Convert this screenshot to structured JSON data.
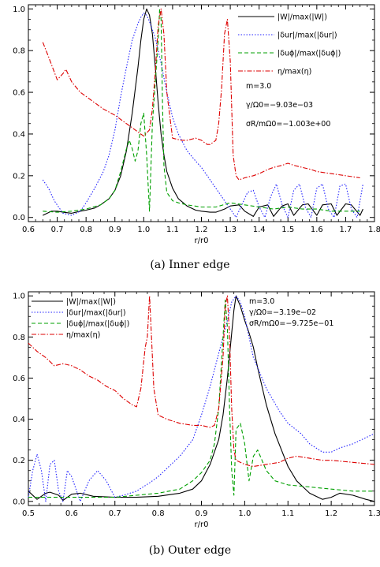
{
  "chart_data": [
    {
      "type": "line",
      "caption": "(a) Inner edge",
      "xlabel": "r/r0",
      "ylabel": "",
      "xlim": [
        0.6,
        1.8
      ],
      "ylim": [
        -0.02,
        1.02
      ],
      "xticks": [
        "0.6",
        "0.7",
        "0.8",
        "0.9",
        "1.0",
        "1.1",
        "1.2",
        "1.3",
        "1.4",
        "1.5",
        "1.6",
        "1.7",
        "1.8"
      ],
      "yticks": [
        "0.0",
        "0.2",
        "0.4",
        "0.6",
        "0.8",
        "1.0"
      ],
      "legend_position": "top-right",
      "annotations": [
        "m=3.0",
        "γ/Ω0=−9.03e−03",
        "σR/mΩ0=−1.003e+00"
      ],
      "series": [
        {
          "name": "|W|/max(|W|)",
          "color": "#000000",
          "dash": "solid",
          "x": [
            0.65,
            0.68,
            0.7,
            0.72,
            0.75,
            0.78,
            0.8,
            0.83,
            0.85,
            0.88,
            0.9,
            0.92,
            0.94,
            0.96,
            0.98,
            0.99,
            1.0,
            1.01,
            1.02,
            1.03,
            1.04,
            1.05,
            1.06,
            1.07,
            1.08,
            1.1,
            1.12,
            1.15,
            1.18,
            1.2,
            1.23,
            1.25,
            1.28,
            1.3,
            1.33,
            1.35,
            1.38,
            1.4,
            1.43,
            1.45,
            1.48,
            1.5,
            1.52,
            1.55,
            1.57,
            1.6,
            1.62,
            1.65,
            1.67,
            1.7,
            1.72,
            1.75,
            1.76
          ],
          "y": [
            0.01,
            0.03,
            0.03,
            0.025,
            0.02,
            0.03,
            0.035,
            0.045,
            0.06,
            0.09,
            0.13,
            0.2,
            0.32,
            0.5,
            0.72,
            0.85,
            0.95,
            1.0,
            0.97,
            0.88,
            0.72,
            0.55,
            0.4,
            0.3,
            0.22,
            0.14,
            0.09,
            0.055,
            0.035,
            0.03,
            0.025,
            0.025,
            0.04,
            0.055,
            0.06,
            0.03,
            0.005,
            0.05,
            0.06,
            0.005,
            0.055,
            0.065,
            0.01,
            0.06,
            0.065,
            0.01,
            0.06,
            0.065,
            0.01,
            0.065,
            0.06,
            0.01,
            0.04
          ]
        },
        {
          "name": "|δur|/max(|δur|)",
          "color": "#2222ff",
          "dash": "1.5,2",
          "x": [
            0.65,
            0.67,
            0.69,
            0.72,
            0.75,
            0.78,
            0.8,
            0.83,
            0.86,
            0.88,
            0.9,
            0.92,
            0.94,
            0.96,
            0.98,
            0.99,
            1.0,
            1.01,
            1.02,
            1.04,
            1.06,
            1.08,
            1.1,
            1.12,
            1.15,
            1.18,
            1.2,
            1.22,
            1.25,
            1.28,
            1.3,
            1.32,
            1.34,
            1.36,
            1.38,
            1.4,
            1.42,
            1.44,
            1.46,
            1.48,
            1.5,
            1.52,
            1.54,
            1.56,
            1.58,
            1.6,
            1.62,
            1.64,
            1.66,
            1.68,
            1.7,
            1.72,
            1.74,
            1.76
          ],
          "y": [
            0.18,
            0.14,
            0.08,
            0.02,
            0.01,
            0.03,
            0.07,
            0.14,
            0.22,
            0.3,
            0.42,
            0.58,
            0.72,
            0.85,
            0.93,
            0.96,
            0.98,
            0.97,
            0.94,
            0.86,
            0.74,
            0.6,
            0.48,
            0.4,
            0.32,
            0.27,
            0.24,
            0.2,
            0.14,
            0.08,
            0.04,
            0.0,
            0.06,
            0.12,
            0.13,
            0.05,
            0.0,
            0.1,
            0.16,
            0.06,
            0.0,
            0.13,
            0.16,
            0.05,
            0.0,
            0.14,
            0.16,
            0.04,
            0.0,
            0.15,
            0.16,
            0.04,
            0.0,
            0.16
          ]
        },
        {
          "name": "|δuϕ|/max(|δuϕ|)",
          "color": "#00a000",
          "dash": "5,3",
          "x": [
            0.65,
            0.7,
            0.75,
            0.8,
            0.85,
            0.88,
            0.9,
            0.92,
            0.94,
            0.95,
            0.96,
            0.97,
            0.98,
            0.99,
            1.0,
            1.01,
            1.02,
            1.03,
            1.04,
            1.05,
            1.055,
            1.06,
            1.065,
            1.07,
            1.08,
            1.09,
            1.1,
            1.12,
            1.15,
            1.2,
            1.25,
            1.3,
            1.35,
            1.4,
            1.45,
            1.5,
            1.55,
            1.6,
            1.65,
            1.7,
            1.75
          ],
          "y": [
            0.03,
            0.025,
            0.03,
            0.04,
            0.06,
            0.09,
            0.13,
            0.22,
            0.33,
            0.37,
            0.33,
            0.27,
            0.32,
            0.45,
            0.5,
            0.3,
            0.03,
            0.45,
            0.65,
            0.85,
            1.0,
            0.95,
            0.55,
            0.25,
            0.12,
            0.1,
            0.08,
            0.07,
            0.06,
            0.05,
            0.05,
            0.07,
            0.06,
            0.05,
            0.04,
            0.05,
            0.04,
            0.04,
            0.03,
            0.03,
            0.03
          ]
        },
        {
          "name": "η/max(η)",
          "color": "#dd0000",
          "dash": "6,2,1.5,2",
          "x": [
            0.65,
            0.67,
            0.7,
            0.72,
            0.73,
            0.75,
            0.78,
            0.8,
            0.83,
            0.86,
            0.9,
            0.93,
            0.96,
            0.98,
            1.0,
            1.02,
            1.03,
            1.04,
            1.05,
            1.06,
            1.07,
            1.08,
            1.1,
            1.13,
            1.15,
            1.18,
            1.2,
            1.22,
            1.23,
            1.25,
            1.26,
            1.27,
            1.28,
            1.29,
            1.3,
            1.31,
            1.32,
            1.33,
            1.35,
            1.38,
            1.4,
            1.43,
            1.45,
            1.48,
            1.5,
            1.52,
            1.55,
            1.58,
            1.6,
            1.65,
            1.7,
            1.75
          ],
          "y": [
            0.84,
            0.77,
            0.66,
            0.69,
            0.71,
            0.65,
            0.6,
            0.58,
            0.55,
            0.52,
            0.49,
            0.46,
            0.43,
            0.41,
            0.39,
            0.42,
            0.52,
            0.7,
            0.92,
            1.0,
            0.88,
            0.6,
            0.38,
            0.37,
            0.37,
            0.38,
            0.37,
            0.35,
            0.35,
            0.37,
            0.45,
            0.62,
            0.88,
            0.95,
            0.75,
            0.3,
            0.2,
            0.18,
            0.19,
            0.2,
            0.21,
            0.23,
            0.24,
            0.25,
            0.26,
            0.25,
            0.24,
            0.23,
            0.22,
            0.21,
            0.2,
            0.19
          ]
        }
      ]
    },
    {
      "type": "line",
      "caption": "(b) Outer edge",
      "xlabel": "r/r0",
      "ylabel": "",
      "xlim": [
        0.5,
        1.3
      ],
      "ylim": [
        -0.02,
        1.02
      ],
      "xticks": [
        "0.5",
        "0.6",
        "0.7",
        "0.8",
        "0.9",
        "1.0",
        "1.1",
        "1.2",
        "1.3"
      ],
      "yticks": [
        "0.0",
        "0.2",
        "0.4",
        "0.6",
        "0.8",
        "1.0"
      ],
      "legend_position": "top-left",
      "annotations": [
        "m=3.0",
        "γ/Ω0=−3.19e−02",
        "σR/mΩ0=−9.725e−01"
      ],
      "series": [
        {
          "name": "|W|/max(|W|)",
          "color": "#000000",
          "dash": "solid",
          "x": [
            0.5,
            0.52,
            0.54,
            0.55,
            0.57,
            0.58,
            0.6,
            0.62,
            0.65,
            0.7,
            0.75,
            0.8,
            0.85,
            0.88,
            0.9,
            0.92,
            0.94,
            0.95,
            0.96,
            0.97,
            0.975,
            0.98,
            0.99,
            1.0,
            1.01,
            1.02,
            1.03,
            1.05,
            1.07,
            1.1,
            1.12,
            1.15,
            1.18,
            1.2,
            1.22,
            1.25,
            1.28,
            1.3
          ],
          "y": [
            0.05,
            0.01,
            0.04,
            0.045,
            0.03,
            0.005,
            0.035,
            0.04,
            0.025,
            0.02,
            0.02,
            0.025,
            0.04,
            0.06,
            0.1,
            0.18,
            0.3,
            0.42,
            0.6,
            0.82,
            0.93,
            1.0,
            0.95,
            0.88,
            0.82,
            0.75,
            0.65,
            0.47,
            0.33,
            0.17,
            0.1,
            0.04,
            0.01,
            0.02,
            0.04,
            0.03,
            0.01,
            0.0
          ]
        },
        {
          "name": "|δur|/max(|δur|)",
          "color": "#2222ff",
          "dash": "1.5,2",
          "x": [
            0.5,
            0.51,
            0.52,
            0.53,
            0.54,
            0.55,
            0.56,
            0.57,
            0.58,
            0.59,
            0.6,
            0.62,
            0.64,
            0.66,
            0.68,
            0.7,
            0.72,
            0.75,
            0.78,
            0.8,
            0.83,
            0.85,
            0.88,
            0.9,
            0.92,
            0.94,
            0.96,
            0.97,
            0.98,
            0.99,
            1.0,
            1.02,
            1.05,
            1.08,
            1.1,
            1.13,
            1.15,
            1.18,
            1.2,
            1.22,
            1.25,
            1.28,
            1.3
          ],
          "y": [
            0.02,
            0.15,
            0.23,
            0.15,
            0.0,
            0.18,
            0.2,
            0.05,
            0.0,
            0.15,
            0.12,
            0.0,
            0.1,
            0.15,
            0.1,
            0.02,
            0.03,
            0.05,
            0.09,
            0.12,
            0.18,
            0.22,
            0.3,
            0.42,
            0.56,
            0.72,
            0.88,
            0.97,
            1.0,
            0.97,
            0.9,
            0.7,
            0.55,
            0.44,
            0.38,
            0.33,
            0.28,
            0.24,
            0.24,
            0.26,
            0.28,
            0.31,
            0.33
          ]
        },
        {
          "name": "|δuϕ|/max(|δuϕ|)",
          "color": "#00a000",
          "dash": "5,3",
          "x": [
            0.5,
            0.55,
            0.6,
            0.65,
            0.7,
            0.75,
            0.8,
            0.85,
            0.88,
            0.9,
            0.92,
            0.93,
            0.94,
            0.95,
            0.955,
            0.96,
            0.965,
            0.97,
            0.975,
            0.98,
            0.99,
            1.0,
            1.01,
            1.02,
            1.03,
            1.04,
            1.05,
            1.07,
            1.1,
            1.15,
            1.2,
            1.25,
            1.3
          ],
          "y": [
            0.02,
            0.02,
            0.02,
            0.02,
            0.02,
            0.03,
            0.04,
            0.06,
            0.1,
            0.14,
            0.2,
            0.28,
            0.45,
            0.8,
            0.98,
            0.85,
            0.45,
            0.15,
            0.03,
            0.35,
            0.38,
            0.28,
            0.1,
            0.22,
            0.25,
            0.2,
            0.15,
            0.1,
            0.08,
            0.07,
            0.06,
            0.05,
            0.05
          ]
        },
        {
          "name": "η/max(η)",
          "color": "#dd0000",
          "dash": "6,2,1.5,2",
          "x": [
            0.5,
            0.52,
            0.54,
            0.56,
            0.58,
            0.6,
            0.62,
            0.64,
            0.66,
            0.68,
            0.7,
            0.72,
            0.74,
            0.75,
            0.76,
            0.77,
            0.775,
            0.78,
            0.785,
            0.79,
            0.8,
            0.82,
            0.85,
            0.88,
            0.9,
            0.92,
            0.93,
            0.94,
            0.95,
            0.955,
            0.96,
            0.965,
            0.97,
            0.975,
            0.98,
            1.0,
            1.02,
            1.05,
            1.08,
            1.1,
            1.12,
            1.15,
            1.18,
            1.2,
            1.25,
            1.3
          ],
          "y": [
            0.77,
            0.73,
            0.7,
            0.66,
            0.67,
            0.66,
            0.64,
            0.61,
            0.59,
            0.56,
            0.54,
            0.5,
            0.47,
            0.46,
            0.55,
            0.75,
            0.8,
            1.0,
            0.78,
            0.55,
            0.42,
            0.4,
            0.38,
            0.37,
            0.37,
            0.36,
            0.37,
            0.45,
            0.7,
            0.95,
            1.0,
            0.8,
            0.45,
            0.25,
            0.2,
            0.18,
            0.17,
            0.18,
            0.19,
            0.21,
            0.22,
            0.21,
            0.2,
            0.2,
            0.19,
            0.18
          ]
        }
      ]
    }
  ]
}
